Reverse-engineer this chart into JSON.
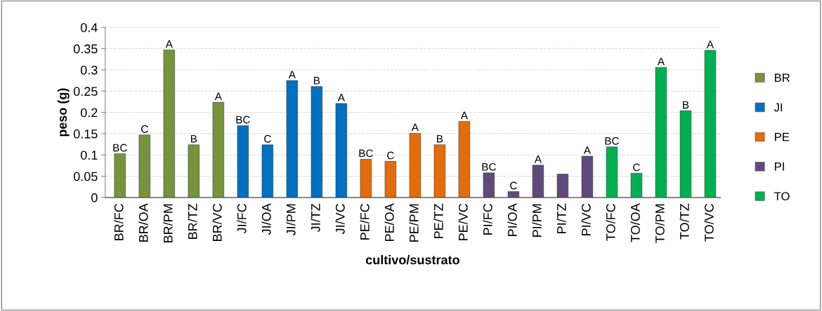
{
  "chart_data": {
    "type": "bar",
    "xlabel": "cultivo/sustrato",
    "ylabel": "peso (g)",
    "categories": [
      "BR/FC",
      "BR/OA",
      "BR/PM",
      "BR/TZ",
      "BR/VC",
      "JI/FC",
      "JI/OA",
      "JI/PM",
      "JI/TZ",
      "JI/VC",
      "PE/FC",
      "PE/OA",
      "PE/PM",
      "PE/TZ",
      "PE/VC",
      "PI/FC",
      "PI/OA",
      "PI/PM",
      "PI/TZ",
      "PI/VC",
      "TO/FC",
      "TO/OA",
      "TO/PM",
      "TO/TZ",
      "TO/VC"
    ],
    "series": [
      {
        "name": "BR",
        "color": "#77933c",
        "values": [
          0.103,
          0.147,
          0.347,
          0.124,
          0.224,
          null,
          null,
          null,
          null,
          null,
          null,
          null,
          null,
          null,
          null,
          null,
          null,
          null,
          null,
          null,
          null,
          null,
          null,
          null,
          null
        ],
        "value_labels": [
          "BC",
          "C",
          "A",
          "B",
          "A",
          null,
          null,
          null,
          null,
          null,
          null,
          null,
          null,
          null,
          null,
          null,
          null,
          null,
          null,
          null,
          null,
          null,
          null,
          null,
          null
        ]
      },
      {
        "name": "JI",
        "color": "#0070c0",
        "values": [
          null,
          null,
          null,
          null,
          null,
          0.169,
          0.124,
          0.275,
          0.261,
          0.221,
          null,
          null,
          null,
          null,
          null,
          null,
          null,
          null,
          null,
          null,
          null,
          null,
          null,
          null,
          null
        ],
        "value_labels": [
          null,
          null,
          null,
          null,
          null,
          "BC",
          "C",
          "A",
          "B",
          "A",
          null,
          null,
          null,
          null,
          null,
          null,
          null,
          null,
          null,
          null,
          null,
          null,
          null,
          null,
          null
        ]
      },
      {
        "name": "PE",
        "color": "#e46c0a",
        "values": [
          null,
          null,
          null,
          null,
          null,
          null,
          null,
          null,
          null,
          null,
          0.09,
          0.085,
          0.151,
          0.124,
          0.179,
          null,
          null,
          null,
          null,
          null,
          null,
          null,
          null,
          null,
          null
        ],
        "value_labels": [
          null,
          null,
          null,
          null,
          null,
          null,
          null,
          null,
          null,
          null,
          "BC",
          "C",
          "A",
          "B",
          "A",
          null,
          null,
          null,
          null,
          null,
          null,
          null,
          null,
          null,
          null
        ]
      },
      {
        "name": "PI",
        "color": "#604a7b",
        "values": [
          null,
          null,
          null,
          null,
          null,
          null,
          null,
          null,
          null,
          null,
          null,
          null,
          null,
          null,
          null,
          0.058,
          0.014,
          0.076,
          0.055,
          0.097,
          null,
          null,
          null,
          null,
          null
        ],
        "value_labels": [
          null,
          null,
          null,
          null,
          null,
          null,
          null,
          null,
          null,
          null,
          null,
          null,
          null,
          null,
          null,
          "BC",
          "C",
          "A",
          null,
          "A",
          null,
          null,
          null,
          null,
          null
        ]
      },
      {
        "name": "TO",
        "color": "#00b050",
        "values": [
          null,
          null,
          null,
          null,
          null,
          null,
          null,
          null,
          null,
          null,
          null,
          null,
          null,
          null,
          null,
          null,
          null,
          null,
          null,
          null,
          0.119,
          0.057,
          0.306,
          0.204,
          0.346
        ],
        "value_labels": [
          null,
          null,
          null,
          null,
          null,
          null,
          null,
          null,
          null,
          null,
          null,
          null,
          null,
          null,
          null,
          null,
          null,
          null,
          null,
          null,
          "BC",
          "C",
          "A",
          "B",
          "A"
        ]
      }
    ],
    "ylim": [
      0,
      0.4
    ],
    "yticks": [
      {
        "value": 0,
        "label": "0"
      },
      0.05,
      0.1,
      0.15,
      0.2,
      0.25,
      0.3,
      0.35,
      0.4
    ],
    "grid": "y",
    "legend": "right"
  }
}
